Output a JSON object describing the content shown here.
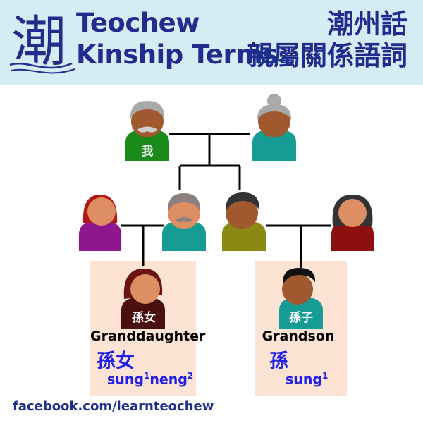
{
  "header": {
    "logo_char": "潮",
    "title_en_line1": "Teochew",
    "title_en_line2": "Kinship Terms",
    "title_zh_line1": "潮州話",
    "title_zh_line2": "親屬關係語詞"
  },
  "people": {
    "self_label": "我",
    "granddaughter_label": "孫女",
    "grandson_label": "孫子"
  },
  "terms": {
    "granddaughter": {
      "english": "Granddaughter",
      "chinese": "孫女",
      "rom_syl1": "sung",
      "rom_tone1": "1",
      "rom_syl2": "neng",
      "rom_tone2": "2"
    },
    "grandson": {
      "english": "Grandson",
      "chinese": "孫",
      "rom_syl1": "sung",
      "rom_tone1": "1"
    }
  },
  "footer": {
    "text": "facebook.com/learnteochew"
  },
  "colors": {
    "title_blue": "#1f2d8f",
    "header_bg": "#d6ecf5",
    "card_bg": "#fde3d3",
    "term_blue": "#2020ee",
    "skin_dark": "#a0582f",
    "skin_light": "#dd8e62"
  }
}
